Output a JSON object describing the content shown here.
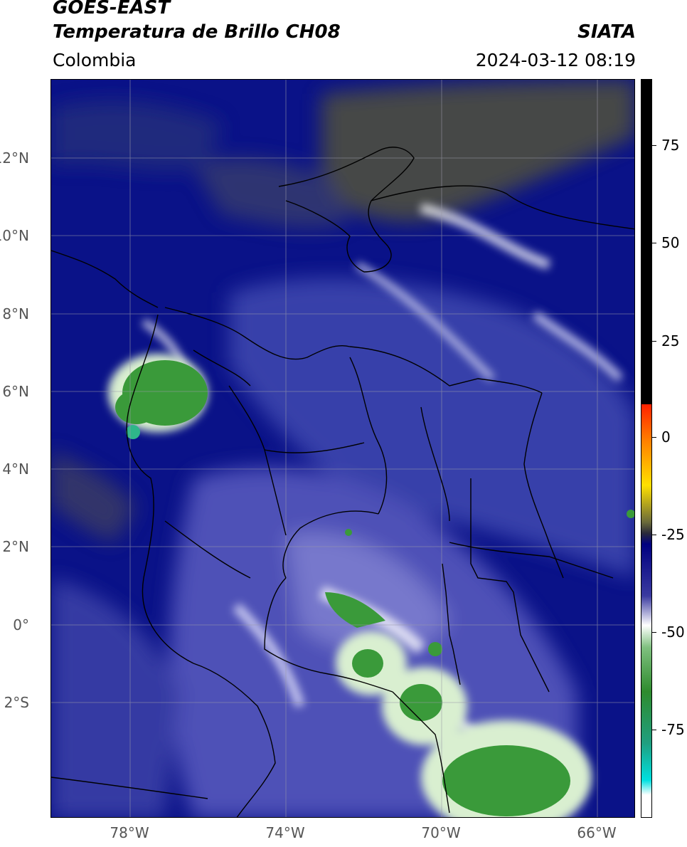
{
  "header": {
    "title_line1": "GOES-EAST",
    "title_line2": "Temperatura de Brillo CH08",
    "brand": "SIATA",
    "region": "Colombia",
    "datetime": "2024-03-12 08:19"
  },
  "map": {
    "latitude_labels": [
      "12°N",
      "10°N",
      "8°N",
      "6°N",
      "4°N",
      "2°N",
      "0°",
      "2°S"
    ],
    "longitude_labels": [
      "78°W",
      "74°W",
      "70°W",
      "66°W"
    ]
  },
  "colorbar": {
    "tick_labels": [
      "75",
      "50",
      "25",
      "0",
      "-25",
      "-50",
      "-75"
    ],
    "colors": [
      "#000000",
      "#ff2000",
      "#ffd000",
      "#3a3a4a",
      "#000080",
      "#ffffff",
      "#2e8b2e",
      "#00e0e0"
    ]
  },
  "colors": {
    "background_cloud_free": "#0a1288",
    "cold_cloud": "#ffffff",
    "deep_convection": "#3a9a3a",
    "dry_air": "#57572e"
  }
}
